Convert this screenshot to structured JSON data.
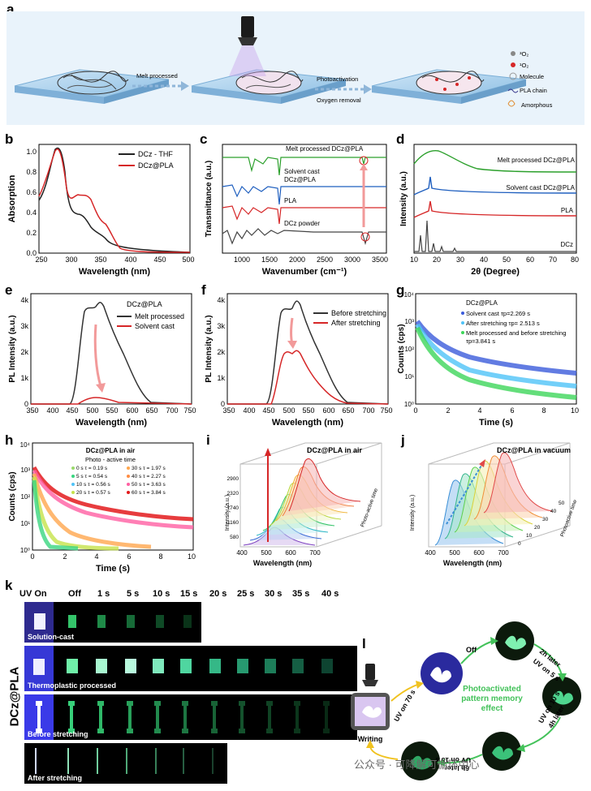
{
  "panels": {
    "a": "a",
    "b": "b",
    "c": "c",
    "d": "d",
    "e": "e",
    "f": "f",
    "g": "g",
    "h": "h",
    "i": "i",
    "j": "j",
    "k": "k",
    "l": "l"
  },
  "panel_a": {
    "step1": "Melt processed",
    "step2a": "Photoactivation",
    "step2b": "Oxygen removal",
    "legend": [
      {
        "symbol": "grey-dot",
        "label": "³O₂"
      },
      {
        "symbol": "red-dot",
        "label": "¹O₂"
      },
      {
        "symbol": "molecule-icon",
        "label": "Molecule"
      },
      {
        "symbol": "chain-icon",
        "label": "PLA chain"
      },
      {
        "symbol": "amorphous-icon",
        "label": "Amorphous"
      }
    ]
  },
  "panel_b": {
    "ylabel": "Absorption",
    "xlabel": "Wavelength (nm)",
    "xticks": [
      "250",
      "300",
      "350",
      "400",
      "450",
      "500"
    ],
    "yticks": [
      "0.0",
      "0.2",
      "0.4",
      "0.6",
      "0.8",
      "1.0"
    ],
    "legend": [
      "DCz - THF",
      "DCz@PLA"
    ]
  },
  "panel_c": {
    "ylabel": "Transmittance (a.u.)",
    "xlabel": "Wavenumber (cm⁻¹)",
    "xticks": [
      "1000",
      "1500",
      "2000",
      "2500",
      "3000",
      "3500"
    ],
    "labels": [
      "Melt processed DCz@PLA",
      "Solvent cast",
      "DCz@PLA",
      "PLA",
      "DCz powder"
    ]
  },
  "panel_d": {
    "ylabel": "Intensity (a.u.)",
    "xlabel": "2θ (Degree)",
    "xticks": [
      "10",
      "20",
      "30",
      "40",
      "50",
      "60",
      "70",
      "80"
    ],
    "labels": [
      "Melt processed DCz@PLA",
      "Solvent cast DCz@PLA",
      "PLA",
      "DCz"
    ]
  },
  "panel_e": {
    "ylabel": "PL Intensity (a.u.)",
    "xlabel": "Wavelength (nm)",
    "xticks": [
      "350",
      "400",
      "450",
      "500",
      "550",
      "600",
      "650",
      "700",
      "750"
    ],
    "yticks": [
      "0",
      "1k",
      "2k",
      "3k",
      "4k"
    ],
    "legend_title": "DCz@PLA",
    "legend": [
      "Melt processed",
      "Solvent cast"
    ]
  },
  "panel_f": {
    "ylabel": "PL Intensity (a.u.)",
    "xlabel": "Wavelength (nm)",
    "xticks": [
      "350",
      "400",
      "450",
      "500",
      "550",
      "600",
      "650",
      "700",
      "750"
    ],
    "yticks": [
      "0",
      "1k",
      "2k",
      "3k",
      "4k"
    ],
    "legend": [
      "Before stretching",
      "After stretching"
    ]
  },
  "panel_g": {
    "ylabel": "Counts (cps)",
    "xlabel": "Time (s)",
    "xticks": [
      "0",
      "2",
      "4",
      "6",
      "8",
      "10"
    ],
    "yticks": [
      "10⁰",
      "10¹",
      "10²",
      "10³",
      "10⁴"
    ],
    "legend_title": "DCz@PLA",
    "legend": [
      "Solvent cast τp=2.269 s",
      "After stretching τp= 2.513 s",
      "Melt processed and before stretching",
      "τp=3.841 s"
    ]
  },
  "panel_h": {
    "ylabel": "Counts (cps)",
    "xlabel": "Time (s)",
    "xticks": [
      "0",
      "2",
      "4",
      "6",
      "8",
      "10"
    ],
    "yticks": [
      "10⁰",
      "10¹",
      "10²",
      "10³",
      "10⁴"
    ],
    "title": "DCz@PLA in air",
    "subtitle": "Photo - active time",
    "legend": [
      "0   s τ = 0.19 s",
      "5   s τ = 0.54 s",
      "10 s τ = 0.56 s",
      "20 s τ = 0.57 s",
      "30 s τ = 1.97 s",
      "40 s τ = 2.27 s",
      "50 s τ = 3.63 s",
      "60 s τ = 3.84 s"
    ]
  },
  "panel_i": {
    "title": "DCz@PLA in air",
    "ylabel": "Intensity (a.u.)",
    "xlabel": "Wavelength (nm)",
    "xticks": [
      "400",
      "500",
      "600",
      "700"
    ],
    "yticks": [
      "580",
      "1160",
      "1740",
      "2320",
      "2900"
    ],
    "zlabel": "Photo-active time"
  },
  "panel_j": {
    "title": "DCz@PLA in vacuum",
    "ylabel": "Intensity (a.u.)",
    "xlabel": "Wavelength (nm)",
    "xticks": [
      "400",
      "500",
      "600",
      "700"
    ],
    "zticks": [
      "0",
      "10",
      "20",
      "30",
      "40",
      "50"
    ],
    "zlabel": "Photoactive time"
  },
  "panel_k": {
    "header": [
      "UV On",
      "Off",
      "1 s",
      "5 s",
      "10 s",
      "15 s",
      "20 s",
      "25 s",
      "30 s",
      "35 s",
      "40 s"
    ],
    "rows": [
      "Solution-cast",
      "Thermoplastic processed",
      "Before stretching",
      "After stretching"
    ],
    "side_label": "DCz@PLA"
  },
  "panel_l": {
    "center": [
      "Photoactivated",
      "pattern memory",
      "effect"
    ],
    "steps": [
      "Off",
      "2h later",
      "UV on 5 s",
      "4h later",
      "UV on 10 s",
      "6h later",
      "UV on 15 s",
      "Writing",
      "UV on 70 s"
    ]
  },
  "watermark": "公众号 · 可降解可循环中心",
  "colors": {
    "red": "#d62728",
    "black": "#222222",
    "green": "#2ca02c",
    "blue": "#1f5fbf",
    "uvblue": "#3b3cff",
    "phosph": "#44e08a"
  }
}
